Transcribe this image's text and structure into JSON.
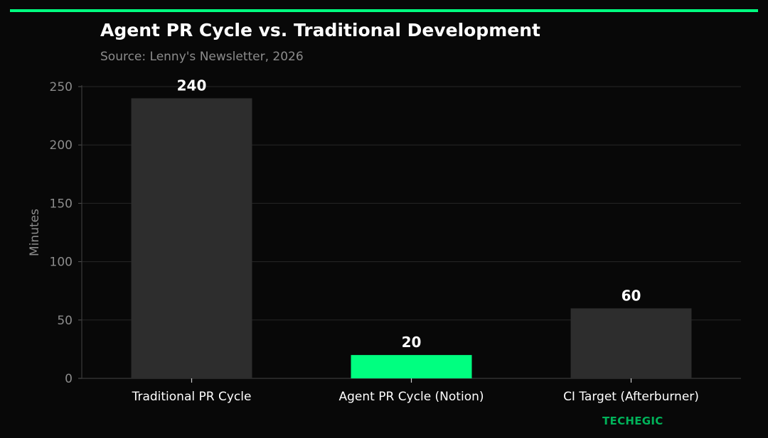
{
  "header": {
    "title": "Agent PR Cycle vs. Traditional Development",
    "subtitle": "Source: Lenny's Newsletter, 2026"
  },
  "branding": {
    "text": "TECHEGIC"
  },
  "colors": {
    "background": "#080808",
    "accent": "#00ff80",
    "bar_default": "#2d2d2d",
    "grid": "#262626",
    "axis_text": "#8c8c8c",
    "label_text": "#ffffff",
    "brand": "#00b35a"
  },
  "chart_data": {
    "type": "bar",
    "title": "Agent PR Cycle vs. Traditional Development",
    "subtitle": "Source: Lenny's Newsletter, 2026",
    "categories": [
      "Traditional PR Cycle",
      "Agent PR Cycle (Notion)",
      "CI Target (Afterburner)"
    ],
    "values": [
      240,
      20,
      60
    ],
    "value_labels": [
      "240",
      "20",
      "60"
    ],
    "highlight_index": 1,
    "xlabel": "",
    "ylabel": "Minutes",
    "ylim": [
      0,
      250
    ],
    "yticks": [
      0,
      50,
      100,
      150,
      200,
      250
    ],
    "grid": true,
    "legend": "none"
  }
}
